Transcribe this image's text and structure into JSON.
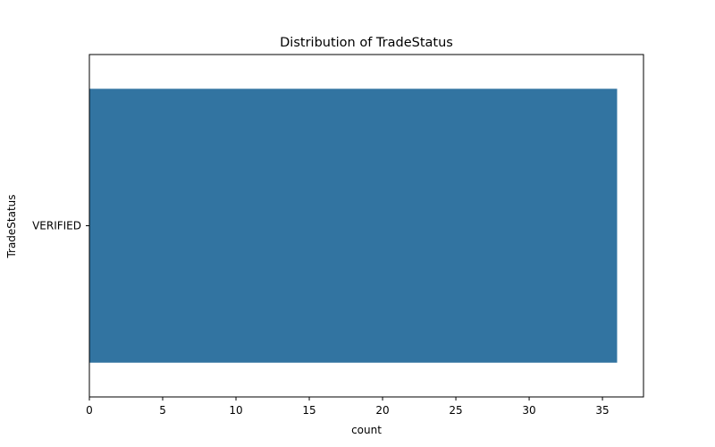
{
  "chart_data": {
    "type": "bar",
    "orientation": "horizontal",
    "title": "Distribution of TradeStatus",
    "xlabel": "count",
    "ylabel": "TradeStatus",
    "categories": [
      "VERIFIED"
    ],
    "values": [
      36
    ],
    "xlim": [
      0,
      37.8
    ],
    "xticks": [
      "0",
      "5",
      "10",
      "15",
      "20",
      "25",
      "30",
      "35"
    ],
    "grid": false,
    "legend": "none",
    "bar_color": "#3274a1"
  }
}
